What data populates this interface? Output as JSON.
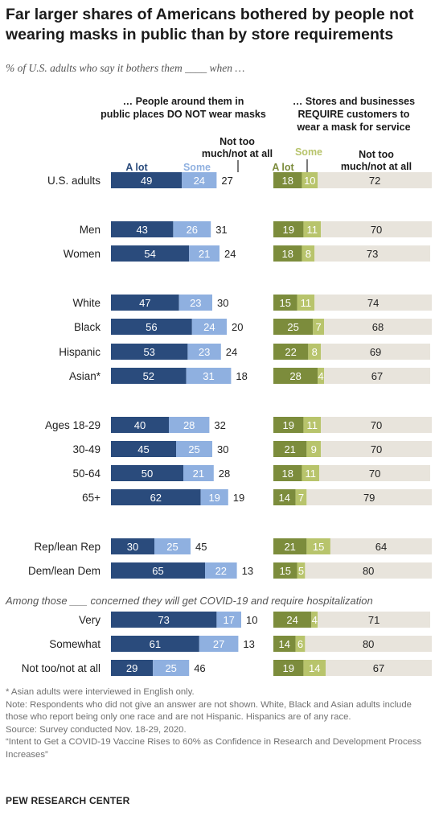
{
  "title": "Far larger shares of Americans bothered by people not wearing masks in public than by store requirements",
  "subtitle": "% of U.S. adults who say it bothers them ____ when …",
  "panel_left": {
    "header": [
      "… People around them in",
      "public places DO NOT wear masks"
    ],
    "legend_alot": "A lot",
    "legend_some": "Some",
    "legend_notoo": [
      "Not too",
      "much/not at all"
    ]
  },
  "panel_right": {
    "header": [
      "… Stores and businesses",
      "REQUIRE customers to",
      "wear a mask for service"
    ],
    "legend_alot": "A lot",
    "legend_some": "Some",
    "legend_notoo": [
      "Not too",
      "much/not at all"
    ]
  },
  "section_note": "Among those ___ concerned they will get COVID-19 and require hospitalization",
  "colors": {
    "left_alot": "#2a4b7c",
    "left_some": "#8fb0e0",
    "right_alot": "#7c8c3c",
    "right_some": "#b8c46c",
    "notoo": "#e8e4dc"
  },
  "chart_data": {
    "type": "bar",
    "stacked": true,
    "orientation": "horizontal",
    "categories": [
      "U.S. adults",
      "Men",
      "Women",
      "White",
      "Black",
      "Hispanic",
      "Asian*",
      "Ages 18-29",
      "30-49",
      "50-64",
      "65+",
      "Rep/lean Rep",
      "Dem/lean Dem",
      "Very",
      "Somewhat",
      "Not too/not at all"
    ],
    "panels": [
      {
        "name": "… People around them in public places DO NOT wear masks",
        "series": [
          {
            "name": "A lot",
            "values": [
              49,
              43,
              54,
              47,
              56,
              53,
              52,
              40,
              45,
              50,
              62,
              30,
              65,
              73,
              61,
              29
            ]
          },
          {
            "name": "Some",
            "values": [
              24,
              26,
              21,
              23,
              24,
              23,
              31,
              28,
              25,
              21,
              19,
              25,
              22,
              17,
              27,
              25
            ]
          },
          {
            "name": "Not too much/not at all",
            "values": [
              27,
              31,
              24,
              30,
              20,
              24,
              18,
              32,
              30,
              28,
              19,
              45,
              13,
              10,
              13,
              46
            ]
          }
        ]
      },
      {
        "name": "… Stores and businesses REQUIRE customers to wear a mask for service",
        "series": [
          {
            "name": "A lot",
            "values": [
              18,
              19,
              18,
              15,
              25,
              22,
              28,
              19,
              21,
              18,
              14,
              21,
              15,
              24,
              14,
              19
            ]
          },
          {
            "name": "Some",
            "values": [
              10,
              11,
              8,
              11,
              7,
              8,
              4,
              11,
              9,
              11,
              7,
              15,
              5,
              4,
              6,
              14
            ]
          },
          {
            "name": "Not too much/not at all",
            "values": [
              72,
              70,
              73,
              74,
              68,
              69,
              67,
              70,
              70,
              70,
              79,
              64,
              80,
              71,
              80,
              67
            ]
          }
        ]
      }
    ]
  },
  "notes": [
    "* Asian adults were interviewed in English only.",
    "Note: Respondents who did not give an answer are not shown. White, Black and Asian adults include those who report being only one race and are not Hispanic. Hispanics are of any race.",
    "Source: Survey conducted Nov. 18-29, 2020.",
    "“Intent to Get a COVID-19 Vaccine Rises to 60% as Confidence in Research and Development Process Increases”"
  ],
  "brand": "PEW RESEARCH CENTER"
}
